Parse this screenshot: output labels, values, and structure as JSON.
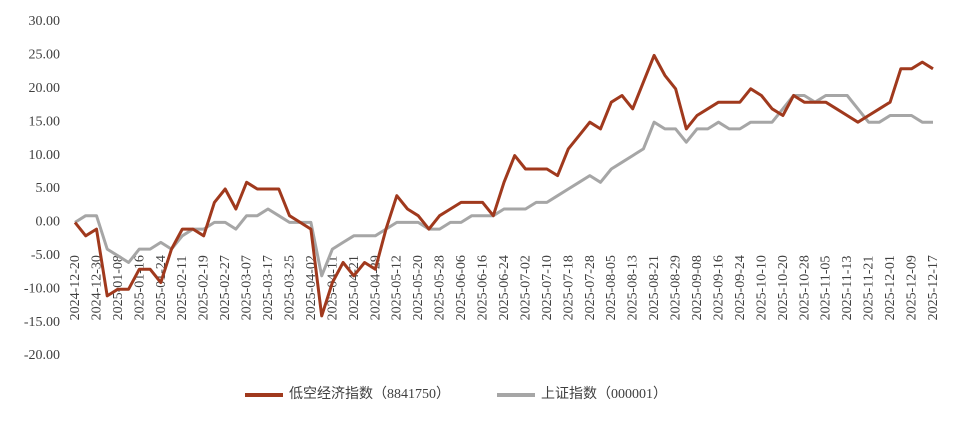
{
  "chart_data": {
    "type": "line",
    "categories": [
      "2024-12-20",
      null,
      "2024-12-30",
      null,
      "2025-01-08",
      null,
      "2025-01-16",
      null,
      "2025-01-24",
      null,
      "2025-02-11",
      null,
      "2025-02-19",
      null,
      "2025-02-27",
      null,
      "2025-03-07",
      null,
      "2025-03-17",
      null,
      "2025-03-25",
      null,
      "2025-04-02",
      null,
      "2025-04-11",
      null,
      "2025-04-21",
      null,
      "2025-04-29",
      null,
      "2025-05-12",
      null,
      "2025-05-20",
      null,
      "2025-05-28",
      null,
      "2025-06-06",
      null,
      "2025-06-16",
      null,
      "2025-06-24",
      null,
      "2025-07-02",
      null,
      "2025-07-10",
      null,
      "2025-07-18",
      null,
      "2025-07-28",
      null,
      "2025-08-05",
      null,
      "2025-08-13",
      null,
      "2025-08-21",
      null,
      "2025-08-29",
      null,
      "2025-09-08",
      null,
      "2025-09-16",
      null,
      "2025-09-24",
      null,
      "2025-10-10",
      null,
      "2025-10-20",
      null,
      "2025-10-28",
      null,
      "2025-11-05",
      null,
      "2025-11-13",
      null,
      "2025-11-21",
      null,
      "2025-12-01",
      null,
      "2025-12-09",
      null,
      "2025-12-17"
    ],
    "series": [
      {
        "name": "低空经济指数（8841750）",
        "color": "#a0391d",
        "values": [
          0,
          -2,
          -1,
          -11,
          -10,
          -10,
          -7,
          -7,
          -9,
          -4,
          -1,
          -1,
          -2,
          3,
          5,
          2,
          6,
          5,
          5,
          5,
          1,
          0,
          -1,
          -14,
          -9,
          -6,
          -8,
          -6,
          -7,
          -1,
          4,
          2,
          1,
          -1,
          1,
          2,
          3,
          3,
          3,
          1,
          6,
          10,
          8,
          8,
          8,
          7,
          11,
          13,
          15,
          14,
          18,
          19,
          17,
          21,
          25,
          22,
          20,
          14,
          16,
          17,
          18,
          18,
          18,
          20,
          19,
          17,
          16,
          19,
          18,
          18,
          18,
          17,
          16,
          15,
          16,
          17,
          18,
          23,
          23,
          24,
          23
        ]
      },
      {
        "name": "上证指数（000001）",
        "color": "#a6a6a6",
        "values": [
          0,
          1,
          1,
          -4,
          -5,
          -6,
          -4,
          -4,
          -3,
          -4,
          -2,
          -1,
          -1,
          0,
          0,
          -1,
          1,
          1,
          2,
          1,
          0,
          0,
          0,
          -8,
          -4,
          -3,
          -2,
          -2,
          -2,
          -1,
          0,
          0,
          0,
          -1,
          -1,
          0,
          0,
          1,
          1,
          1,
          2,
          2,
          2,
          3,
          3,
          4,
          5,
          6,
          7,
          6,
          8,
          9,
          10,
          11,
          15,
          14,
          14,
          12,
          14,
          14,
          15,
          14,
          14,
          15,
          15,
          15,
          17,
          19,
          19,
          18,
          19,
          19,
          19,
          17,
          15,
          15,
          16,
          16,
          16,
          15,
          15
        ]
      }
    ],
    "ylim": [
      -20,
      30
    ],
    "yticks": [
      {
        "value": -20,
        "label": "-20.00"
      },
      {
        "value": -15,
        "label": "-15.00"
      },
      {
        "value": -10,
        "label": "-10.00"
      },
      {
        "value": -5,
        "label": "-5.00"
      },
      {
        "value": 0,
        "label": "0.00"
      },
      {
        "value": 5,
        "label": "5.00"
      },
      {
        "value": 10,
        "label": "10.00"
      },
      {
        "value": 15,
        "label": "15.00"
      },
      {
        "value": 20,
        "label": "20.00"
      },
      {
        "value": 25,
        "label": "25.00"
      },
      {
        "value": 30,
        "label": "30.00"
      }
    ],
    "grid": false
  }
}
